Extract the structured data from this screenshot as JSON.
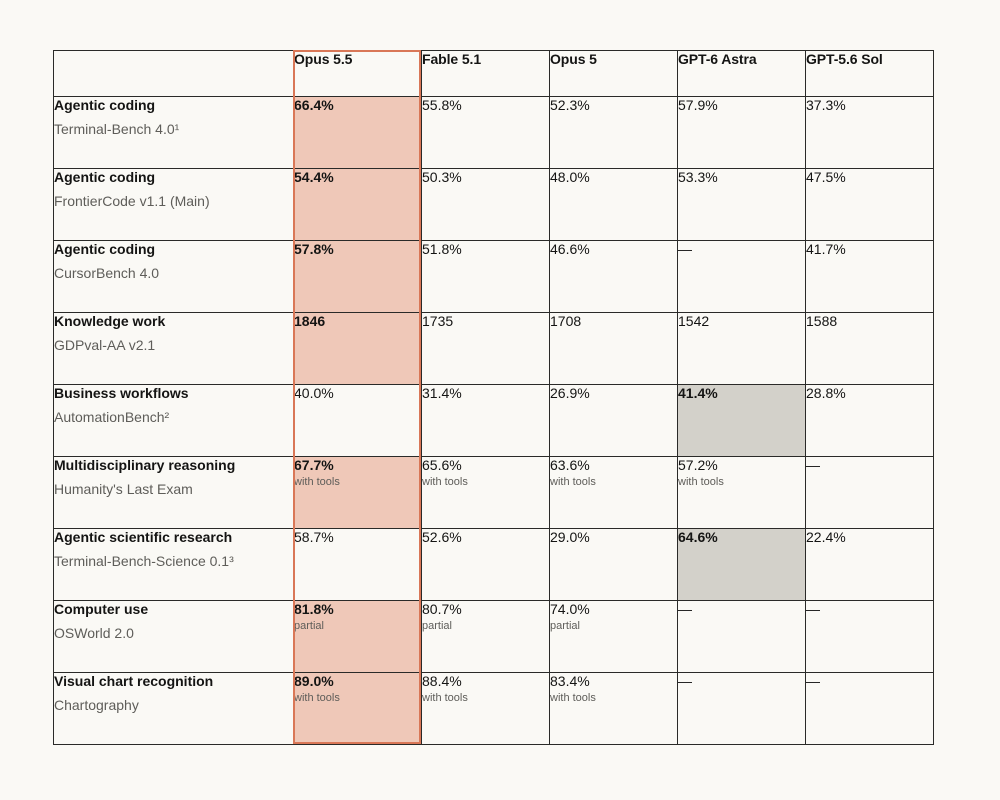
{
  "columns": [
    {
      "label": ""
    },
    {
      "label": "Opus 5.5"
    },
    {
      "label": "Fable 5.1"
    },
    {
      "label": "Opus 5"
    },
    {
      "label": "GPT-6 Astra"
    },
    {
      "label": "GPT-5.6 Sol"
    }
  ],
  "rows": [
    {
      "category": "Agentic coding",
      "benchmark": "Terminal-Bench 4.0¹",
      "cells": [
        {
          "value": "66.4%",
          "note": "",
          "highlight": "best"
        },
        {
          "value": "55.8%",
          "note": "",
          "highlight": ""
        },
        {
          "value": "52.3%",
          "note": "",
          "highlight": ""
        },
        {
          "value": "57.9%",
          "note": "",
          "highlight": ""
        },
        {
          "value": "37.3%",
          "note": "",
          "highlight": ""
        }
      ]
    },
    {
      "category": "Agentic coding",
      "benchmark": "FrontierCode v1.1 (Main)",
      "cells": [
        {
          "value": "54.4%",
          "note": "",
          "highlight": "best"
        },
        {
          "value": "50.3%",
          "note": "",
          "highlight": ""
        },
        {
          "value": "48.0%",
          "note": "",
          "highlight": ""
        },
        {
          "value": "53.3%",
          "note": "",
          "highlight": ""
        },
        {
          "value": "47.5%",
          "note": "",
          "highlight": ""
        }
      ]
    },
    {
      "category": "Agentic coding",
      "benchmark": "CursorBench 4.0",
      "cells": [
        {
          "value": "57.8%",
          "note": "",
          "highlight": "best"
        },
        {
          "value": "51.8%",
          "note": "",
          "highlight": ""
        },
        {
          "value": "46.6%",
          "note": "",
          "highlight": ""
        },
        {
          "value": "—",
          "note": "",
          "highlight": ""
        },
        {
          "value": "41.7%",
          "note": "",
          "highlight": ""
        }
      ]
    },
    {
      "category": "Knowledge work",
      "benchmark": "GDPval-AA v2.1",
      "cells": [
        {
          "value": "1846",
          "note": "",
          "highlight": "best"
        },
        {
          "value": "1735",
          "note": "",
          "highlight": ""
        },
        {
          "value": "1708",
          "note": "",
          "highlight": ""
        },
        {
          "value": "1542",
          "note": "",
          "highlight": ""
        },
        {
          "value": "1588",
          "note": "",
          "highlight": ""
        }
      ]
    },
    {
      "category": "Business workflows",
      "benchmark": "AutomationBench²",
      "cells": [
        {
          "value": "40.0%",
          "note": "",
          "highlight": ""
        },
        {
          "value": "31.4%",
          "note": "",
          "highlight": ""
        },
        {
          "value": "26.9%",
          "note": "",
          "highlight": ""
        },
        {
          "value": "41.4%",
          "note": "",
          "highlight": "top-other"
        },
        {
          "value": "28.8%",
          "note": "",
          "highlight": ""
        }
      ]
    },
    {
      "category": "Multidisciplinary reasoning",
      "benchmark": "Humanity's Last Exam",
      "cells": [
        {
          "value": "67.7%",
          "note": "with tools",
          "highlight": "best"
        },
        {
          "value": "65.6%",
          "note": "with tools",
          "highlight": ""
        },
        {
          "value": "63.6%",
          "note": "with tools",
          "highlight": ""
        },
        {
          "value": "57.2%",
          "note": "with tools",
          "highlight": ""
        },
        {
          "value": "—",
          "note": "",
          "highlight": ""
        }
      ]
    },
    {
      "category": "Agentic scientific research",
      "benchmark": "Terminal-Bench-Science 0.1³",
      "cells": [
        {
          "value": "58.7%",
          "note": "",
          "highlight": ""
        },
        {
          "value": "52.6%",
          "note": "",
          "highlight": ""
        },
        {
          "value": "29.0%",
          "note": "",
          "highlight": ""
        },
        {
          "value": "64.6%",
          "note": "",
          "highlight": "top-other"
        },
        {
          "value": "22.4%",
          "note": "",
          "highlight": ""
        }
      ]
    },
    {
      "category": "Computer use",
      "benchmark": "OSWorld 2.0",
      "cells": [
        {
          "value": "81.8%",
          "note": "partial",
          "highlight": "best"
        },
        {
          "value": "80.7%",
          "note": "partial",
          "highlight": ""
        },
        {
          "value": "74.0%",
          "note": "partial",
          "highlight": ""
        },
        {
          "value": "—",
          "note": "",
          "highlight": ""
        },
        {
          "value": "—",
          "note": "",
          "highlight": ""
        }
      ]
    },
    {
      "category": "Visual chart recognition",
      "benchmark": "Chartography",
      "cells": [
        {
          "value": "89.0%",
          "note": "with tools",
          "highlight": "best"
        },
        {
          "value": "88.4%",
          "note": "with tools",
          "highlight": ""
        },
        {
          "value": "83.4%",
          "note": "with tools",
          "highlight": ""
        },
        {
          "value": "—",
          "note": "",
          "highlight": ""
        },
        {
          "value": "—",
          "note": "",
          "highlight": ""
        }
      ]
    }
  ]
}
